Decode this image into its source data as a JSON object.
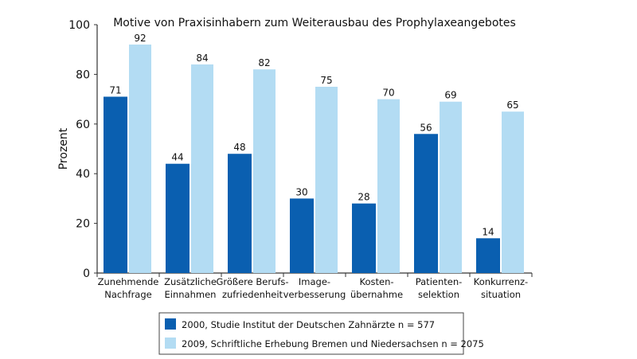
{
  "chart_data": {
    "type": "bar",
    "title": "Motive von Praxisinhabern zum Weiterausbau des Prophylaxeangebotes",
    "xlabel": "",
    "ylabel": "Prozent",
    "ylim": [
      0,
      100
    ],
    "yticks": [
      0,
      20,
      40,
      60,
      80,
      100
    ],
    "grid": false,
    "legend_position": "bottom",
    "categories": [
      [
        "Zunehmende",
        "Nachfrage"
      ],
      [
        "Zusätzliche",
        "Einnahmen"
      ],
      [
        "Größere Berufs-",
        "zufriedenheit"
      ],
      [
        "Image-",
        "verbesserung"
      ],
      [
        "Kosten-",
        "übernahme"
      ],
      [
        "Patienten-",
        "selektion"
      ],
      [
        "Konkurrenz-",
        "situation"
      ]
    ],
    "series": [
      {
        "name": "2000, Studie Institut der Deutschen Zahnärzte n = 577",
        "color": "#0a5fb0",
        "values": [
          71,
          44,
          48,
          30,
          28,
          56,
          14
        ]
      },
      {
        "name": "2009, Schriftliche Erhebung Bremen und Niedersachsen n = 2075",
        "color": "#b3dcf3",
        "values": [
          92,
          84,
          82,
          75,
          70,
          69,
          65
        ]
      }
    ]
  }
}
